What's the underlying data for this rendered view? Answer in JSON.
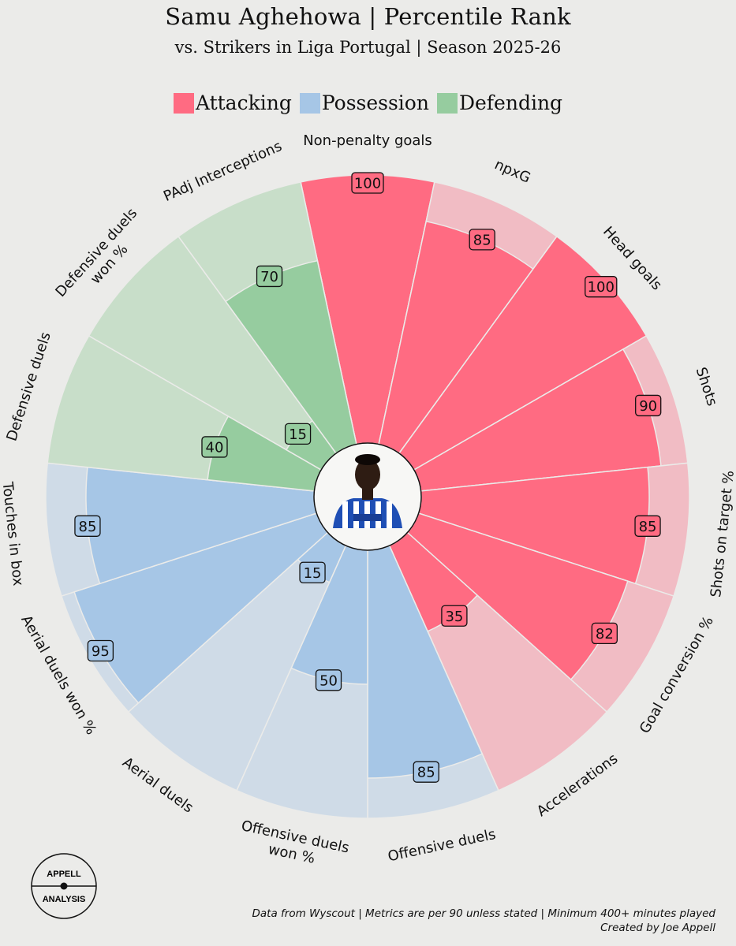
{
  "chart_data": {
    "type": "polar-bar",
    "title": "Samu Aghehowa | Percentile Rank",
    "subtitle": "vs. Strikers in Liga Portugal | Season 2025-26",
    "value_range": [
      0,
      100
    ],
    "legend": [
      {
        "name": "Attacking",
        "color": "#ff6b82"
      },
      {
        "name": "Possession",
        "color": "#a6c6e6"
      },
      {
        "name": "Defending",
        "color": "#96cc9f"
      }
    ],
    "background_colors": {
      "Attacking": "#f1bcc4",
      "Possession": "#cfdbe7",
      "Defending": "#c8dec9"
    },
    "metrics": [
      {
        "label": "Non-penalty goals",
        "value": 100,
        "category": "Attacking"
      },
      {
        "label": "npxG",
        "value": 85,
        "category": "Attacking"
      },
      {
        "label": "Head goals",
        "value": 100,
        "category": "Attacking"
      },
      {
        "label": "Shots",
        "value": 90,
        "category": "Attacking"
      },
      {
        "label": "Shots on target %",
        "value": 85,
        "category": "Attacking"
      },
      {
        "label": "Goal conversion %",
        "value": 82,
        "category": "Attacking"
      },
      {
        "label": "Accelerations",
        "value": 35,
        "category": "Attacking"
      },
      {
        "label": "Offensive duels",
        "value": 85,
        "category": "Possession"
      },
      {
        "label": "Offensive duels\nwon %",
        "value": 50,
        "category": "Possession"
      },
      {
        "label": "Aerial duels",
        "value": 15,
        "category": "Possession"
      },
      {
        "label": "Aerial duels won %",
        "value": 95,
        "category": "Possession"
      },
      {
        "label": "Touches in box",
        "value": 85,
        "category": "Possession"
      },
      {
        "label": "Defensive duels",
        "value": 40,
        "category": "Defending"
      },
      {
        "label": "Defensive duels\nwon %",
        "value": 15,
        "category": "Defending"
      },
      {
        "label": "PAdj Interceptions",
        "value": 70,
        "category": "Defending"
      }
    ]
  },
  "logo": {
    "top": "APPELL",
    "bottom": "ANALYSIS"
  },
  "footer": {
    "line1": "Data from Wyscout | Metrics are per 90 unless stated | Minimum 400+ minutes played",
    "line2": "Created by Joe Appell"
  }
}
